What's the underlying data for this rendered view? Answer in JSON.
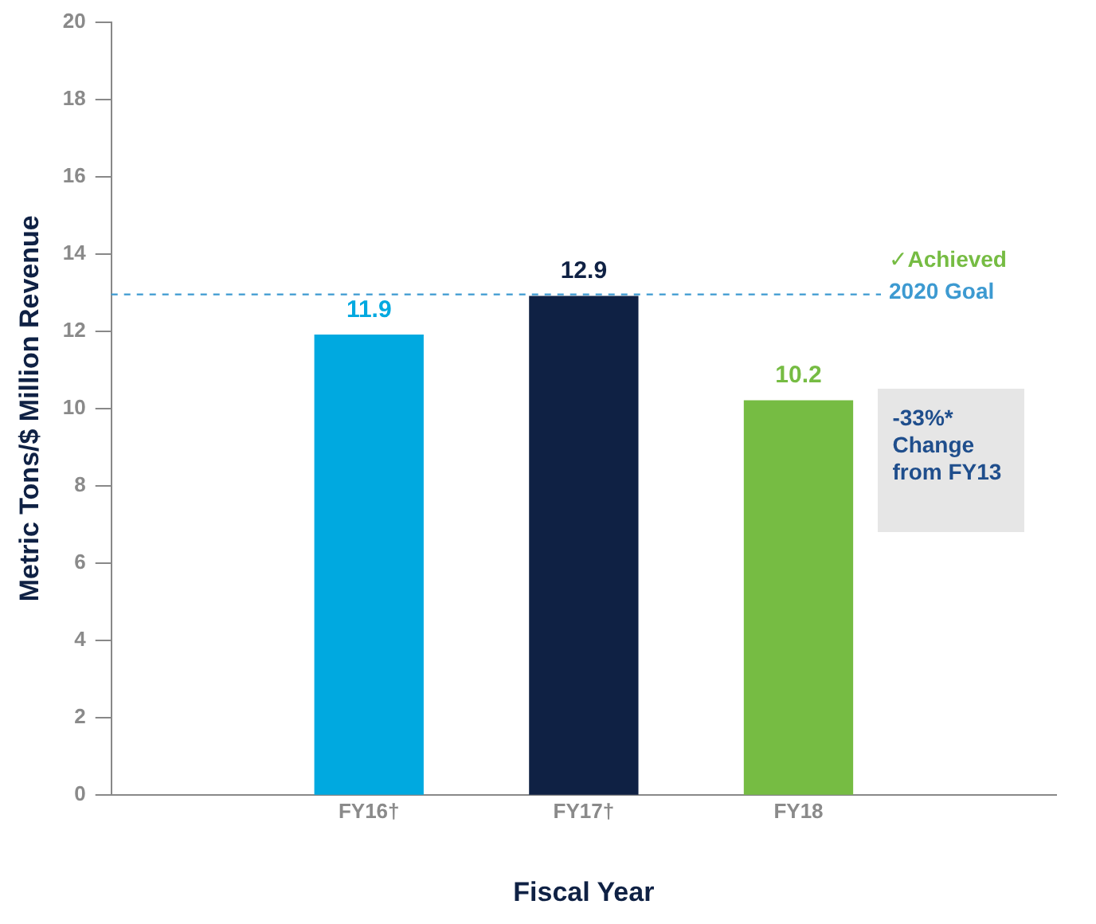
{
  "chart_data": {
    "type": "bar",
    "xlabel": "Fiscal Year",
    "ylabel": "Metric Tons/$ Million Revenue",
    "categories": [
      "FY16†",
      "FY17†",
      "FY18"
    ],
    "values": [
      11.9,
      12.9,
      10.2
    ],
    "colors": [
      "#00a9e0",
      "#0f2144",
      "#76bc43"
    ],
    "data_labels": true,
    "ylim": [
      0,
      20
    ],
    "yticks": [
      0,
      2,
      4,
      6,
      8,
      10,
      12,
      14,
      16,
      18,
      20
    ],
    "grid": false,
    "ref_lines": [
      {
        "axis": "y",
        "value": 12.95,
        "label": "2020 Goal",
        "color": "#3d9ad1",
        "line_style": "dashed"
      }
    ],
    "annotations": [
      "✓Achieved",
      "-33%* Change from FY13"
    ]
  }
}
